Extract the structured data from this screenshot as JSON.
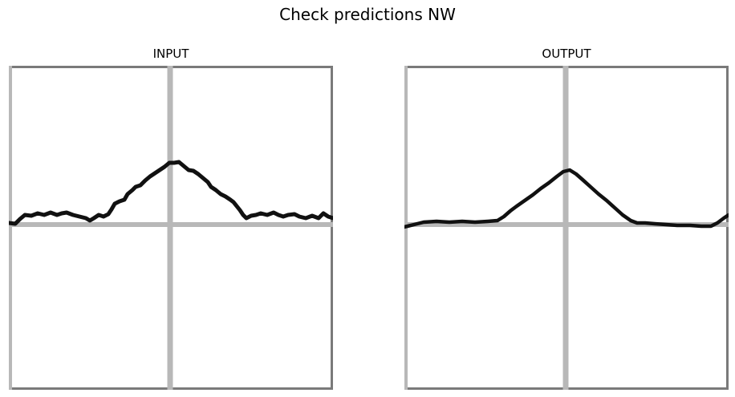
{
  "figure": {
    "title": "Check predictions NW"
  },
  "panels": [
    {
      "id": "input",
      "title": "INPUT"
    },
    {
      "id": "output",
      "title": "OUTPUT"
    }
  ],
  "colors": {
    "background": "#ffffff",
    "frame": "#7a7a7a",
    "axis_lines": "#b8b8b8",
    "curve": "#111111"
  }
}
